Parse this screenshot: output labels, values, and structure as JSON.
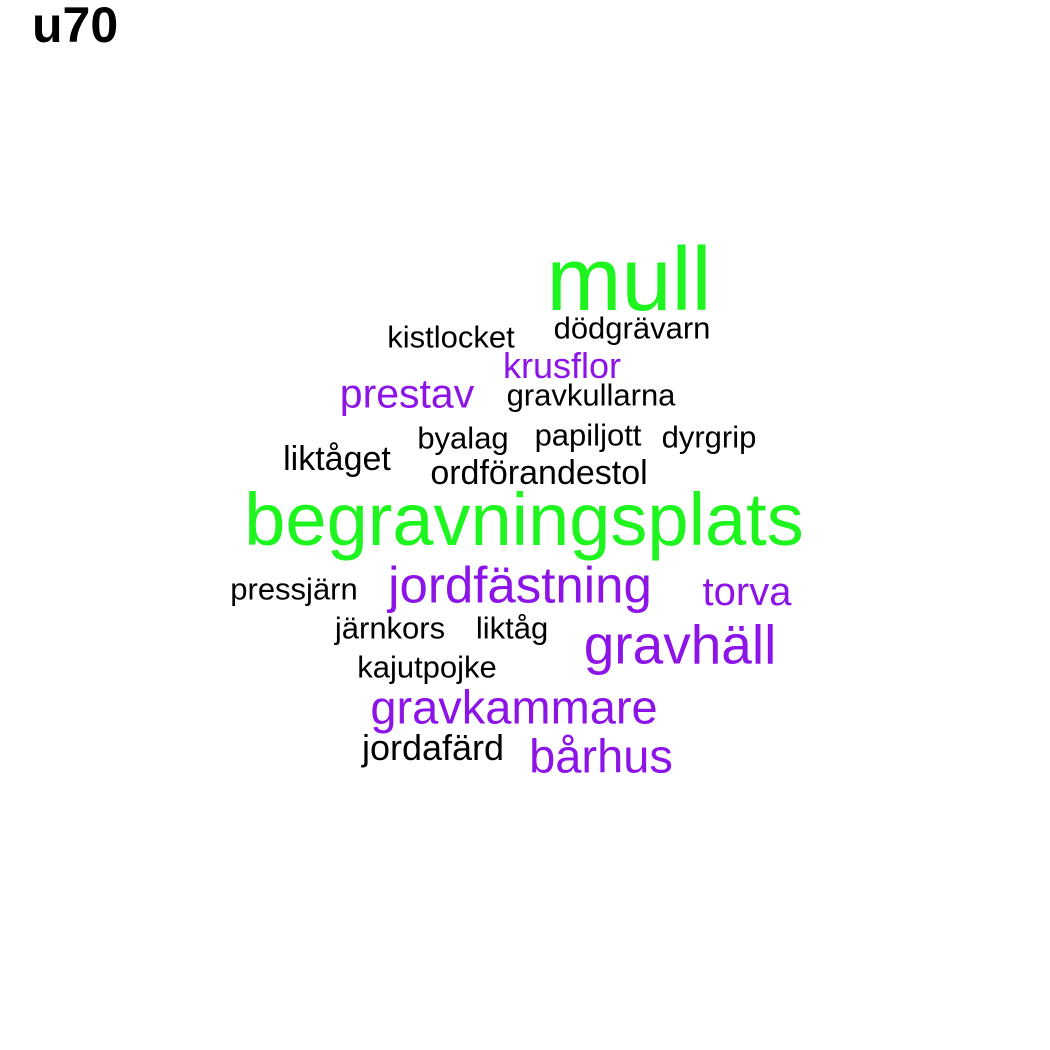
{
  "title": "u70",
  "colors": {
    "green": "#1ef51e",
    "purple": "#8c14e6",
    "black": "#000000"
  },
  "words": [
    {
      "text": "mull",
      "color": "#1ef51e"
    },
    {
      "text": "begravningsplats",
      "color": "#1ef51e"
    },
    {
      "text": "kistlocket",
      "color": "#000000"
    },
    {
      "text": "dödgrävarn",
      "color": "#000000"
    },
    {
      "text": "krusflor",
      "color": "#8c14e6"
    },
    {
      "text": "prestav",
      "color": "#8c14e6"
    },
    {
      "text": "gravkullarna",
      "color": "#000000"
    },
    {
      "text": "byalag",
      "color": "#000000"
    },
    {
      "text": "papiljott",
      "color": "#000000"
    },
    {
      "text": "dyrgrip",
      "color": "#000000"
    },
    {
      "text": "liktåget",
      "color": "#000000"
    },
    {
      "text": "ordförandestol",
      "color": "#000000"
    },
    {
      "text": "pressjärn",
      "color": "#000000"
    },
    {
      "text": "jordfästning",
      "color": "#8c14e6"
    },
    {
      "text": "torva",
      "color": "#8c14e6"
    },
    {
      "text": "järnkors",
      "color": "#000000"
    },
    {
      "text": "liktåg",
      "color": "#000000"
    },
    {
      "text": "gravhäll",
      "color": "#8c14e6"
    },
    {
      "text": "kajutpojke",
      "color": "#000000"
    },
    {
      "text": "gravkammare",
      "color": "#8c14e6"
    },
    {
      "text": "jordafärd",
      "color": "#000000"
    },
    {
      "text": "bårhus",
      "color": "#8c14e6"
    }
  ]
}
